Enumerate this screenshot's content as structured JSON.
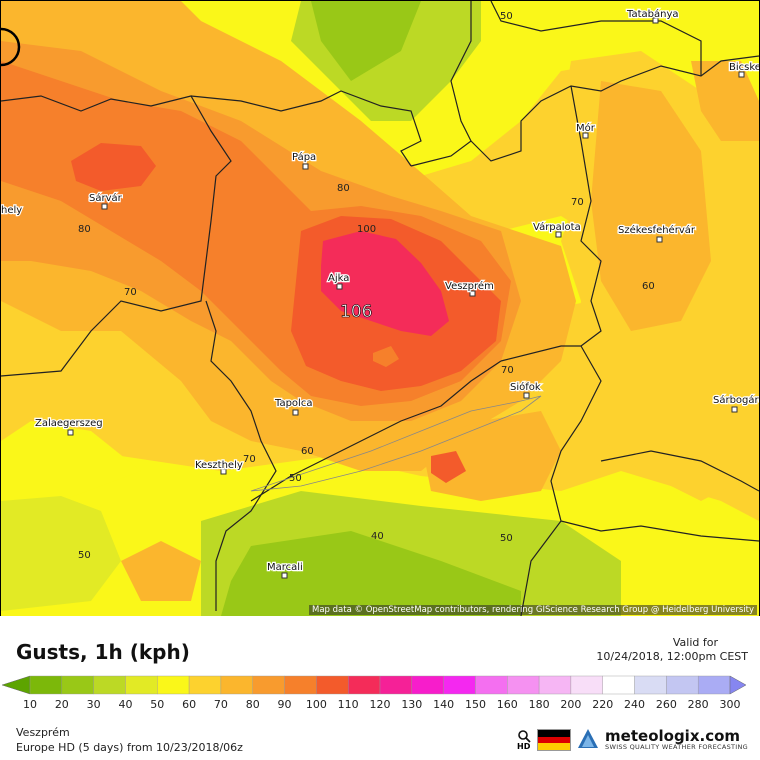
{
  "legend": {
    "title": "Gusts, 1h (kph)",
    "valid_label": "Valid for",
    "valid_time": "10/24/2018, 12:00pm CEST",
    "scale_values": [
      "10",
      "20",
      "30",
      "40",
      "50",
      "60",
      "70",
      "80",
      "90",
      "100",
      "110",
      "120",
      "130",
      "140",
      "150",
      "160",
      "180",
      "200",
      "220",
      "240",
      "260",
      "280",
      "300"
    ],
    "colors": [
      "#5da400",
      "#7cb80a",
      "#99c817",
      "#bcd925",
      "#e2ea25",
      "#faf719",
      "#fdd22e",
      "#fbb62d",
      "#f89b2e",
      "#f6802b",
      "#f35b2b",
      "#f42c59",
      "#f52197",
      "#f71dcb",
      "#f428f0",
      "#f46ff0",
      "#f591f1",
      "#f6b6f4",
      "#f8def8",
      "#ffffff",
      "#d9dcf4",
      "#c3c6f2",
      "#aaacf4",
      "#8686f0"
    ]
  },
  "footer": {
    "location": "Veszprém",
    "model": "Europe HD (5 days) from 10/23/2018/06z",
    "hd_label": "HD",
    "brand": "meteologix.com",
    "tagline": "SWISS QUALITY WEATHER FORECASTING"
  },
  "map": {
    "attribution": "Map data © OpenStreetMap contributors, rendering GIScience Research Group @ Heidelberg University",
    "peak_value": "106",
    "cities": [
      "Tatabánya",
      "Bicske",
      "Mór",
      "Pápa",
      "Sárvár",
      "Várpalota",
      "Székesfehérvár",
      "Ajka",
      "Veszprém",
      "Siófok",
      "Tapolca",
      "Zalaegerszeg",
      "Keszthely",
      "Sárbogárd",
      "Marcali",
      "hely"
    ],
    "contour_labels": [
      "50",
      "80",
      "70",
      "80",
      "70",
      "100",
      "60",
      "70",
      "60",
      "70",
      "50",
      "40",
      "50",
      "50"
    ]
  }
}
